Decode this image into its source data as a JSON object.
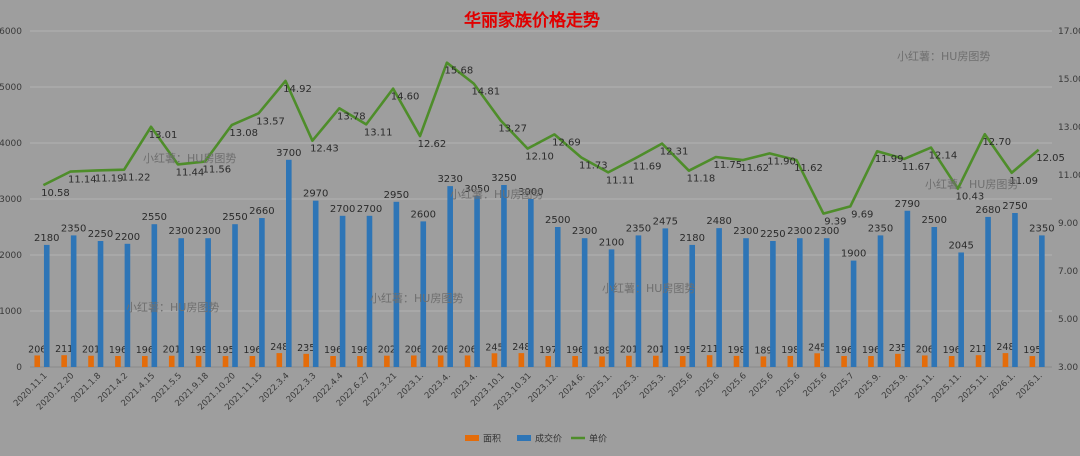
{
  "chart_data": {
    "type": "bar",
    "title": "华丽家族价格走势",
    "categories": [
      "2020.11.1",
      "2020.12.20",
      "2021.1.8",
      "2021.4.2",
      "2021.4.15",
      "2021.5.5",
      "2021.9.18",
      "2021.10.20",
      "2021.11.15",
      "2022.3.4",
      "2022.3.3",
      "2022.4.4",
      "2022.6.27",
      "2022.3.21",
      "2023.1.",
      "2023.4.",
      "2023.4.",
      "2023.10.1",
      "2023.10.31",
      "2023.12.",
      "2024.6.",
      "2025.1.",
      "2025.3.",
      "2025.3.",
      "2025.6",
      "2025.6",
      "2025.6",
      "2025.6",
      "2025.6",
      "2025.6",
      "2025.7",
      "2025.9.",
      "2025.9.",
      "2025.11.",
      "2025.11.",
      "2025.11.",
      "2026.1.",
      "2026.1."
    ],
    "series": [
      {
        "name": "面积",
        "type": "bar",
        "axis": "left",
        "color": "#e46c0a",
        "values": [
          206,
          211,
          201,
          196,
          196,
          201,
          199,
          195,
          196,
          248,
          235,
          196,
          196,
          202,
          206,
          206,
          206,
          245,
          248,
          197,
          196,
          189,
          201,
          201,
          195,
          211,
          198,
          189,
          198,
          245,
          196,
          196,
          235,
          206,
          196,
          211,
          248,
          195
        ]
      },
      {
        "name": "成交价",
        "type": "bar",
        "axis": "left",
        "color": "#2e75b6",
        "values": [
          2180,
          2350,
          2250,
          2200,
          2550,
          2300,
          2300,
          2550,
          2660,
          3700,
          2970,
          2700,
          2700,
          2950,
          2600,
          3230,
          3050,
          3250,
          3000,
          2500,
          2300,
          2100,
          2350,
          2475,
          2180,
          2480,
          2300,
          2250,
          2300,
          2300,
          1900,
          2350,
          2790,
          2500,
          2045,
          2680,
          2750,
          2350
        ]
      },
      {
        "name": "单价",
        "type": "line",
        "axis": "right",
        "color": "#4e8d2a",
        "values": [
          10.58,
          11.14,
          11.19,
          11.22,
          13.01,
          11.44,
          11.56,
          13.08,
          13.57,
          14.92,
          12.43,
          13.78,
          13.11,
          14.6,
          12.62,
          15.68,
          14.81,
          13.27,
          12.1,
          12.69,
          11.73,
          11.11,
          11.69,
          12.31,
          11.18,
          11.75,
          11.62,
          11.9,
          11.62,
          9.39,
          9.69,
          11.99,
          11.67,
          12.14,
          10.43,
          12.7,
          11.09,
          12.05
        ]
      }
    ],
    "bar_labels": [
      "206",
      "211",
      "201",
      "196",
      "196",
      "201",
      "199",
      "195",
      "196",
      "248",
      "235",
      "196",
      "196",
      "202",
      "206",
      "206",
      "206",
      "245",
      "248",
      "197",
      "196",
      "189",
      "201",
      "201",
      "195",
      "211",
      "198",
      "189",
      "198",
      "245",
      "196",
      "196",
      "235",
      "206",
      "196",
      "211",
      "248",
      "195"
    ],
    "price_labels": [
      "2180",
      "2350",
      "2250",
      "2200",
      "2550",
      "2300",
      "2300",
      "2550",
      "2660",
      "3700",
      "2970",
      "2700",
      "2700",
      "2950",
      "2600",
      "3230",
      "3050",
      "3250",
      "3000",
      "2500",
      "2300",
      "2100",
      "2350",
      "2475",
      "2180",
      "2480",
      "2300",
      "2250",
      "2300",
      "2300",
      "1900",
      "2350",
      "2790",
      "2500",
      "2045",
      "2680",
      "2750",
      "2350"
    ],
    "unit_labels": [
      "10.58",
      "11.14",
      "11.19",
      "11.22",
      "13.01",
      "11.44",
      "11.56",
      "13.08",
      "13.57",
      "14.92",
      "12.43",
      "13.78",
      "13.11",
      "14.60",
      "12.62",
      "15.68",
      "14.81",
      "13.27",
      "12.10",
      "12.69",
      "11.73",
      "11.11",
      "11.69",
      "12.31",
      "11.18",
      "11.75",
      "11.62",
      "11.90",
      "11.62",
      "9.39",
      "9.69",
      "11.99",
      "11.67",
      "12.14",
      "10.43",
      "12.70",
      "11.09",
      "12.05"
    ],
    "y_left": {
      "min": 0,
      "max": 6000,
      "ticks": [
        "0",
        "1000",
        "2000",
        "3000",
        "4000",
        "5000",
        "6000"
      ]
    },
    "y_right": {
      "min": 3.0,
      "max": 17.0,
      "ticks": [
        "",
        "3.00",
        "5.00",
        "7.00",
        "9.00",
        "11.00",
        "13.00",
        "15.00",
        "17.00"
      ]
    },
    "xlabel": "",
    "ylabel": "",
    "grid": true,
    "legend_position": "bottom-center",
    "watermarks": [
      "小红薯：HU房图势",
      "小红薯：HU房图势",
      "小红薯：HU房图势",
      "小红薯：HU房图势",
      "小红薯：HU房图势",
      "小红薯：HU房图势",
      "小红薯：HU房图势"
    ]
  }
}
